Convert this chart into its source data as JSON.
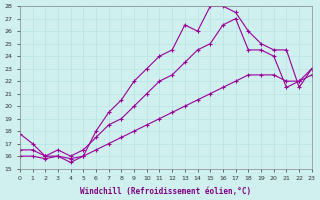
{
  "xlabel": "Windchill (Refroidissement éolien,°C)",
  "bg_color": "#cff0ef",
  "line_color": "#990099",
  "grid_color": "#b8e4e3",
  "xmin": 0,
  "xmax": 23,
  "ymin": 15,
  "ymax": 28,
  "line1_x": [
    0,
    1,
    2,
    3,
    4,
    5,
    6,
    7,
    8,
    9,
    10,
    11,
    12,
    13,
    14,
    15,
    16,
    17,
    18,
    19,
    20,
    21,
    22,
    23
  ],
  "line1_y": [
    17.8,
    17.0,
    16.0,
    16.0,
    15.5,
    16.0,
    18.0,
    19.5,
    20.5,
    22.0,
    23.0,
    24.0,
    24.5,
    26.5,
    26.0,
    28.0,
    28.0,
    27.5,
    26.0,
    25.0,
    24.5,
    24.5,
    21.5,
    23.0
  ],
  "line2_x": [
    0,
    1,
    2,
    3,
    4,
    5,
    6,
    7,
    8,
    9,
    10,
    11,
    12,
    13,
    14,
    15,
    16,
    17,
    18,
    19,
    20,
    21,
    22,
    23
  ],
  "line2_y": [
    16.5,
    16.5,
    16.0,
    16.5,
    16.0,
    16.5,
    17.5,
    18.5,
    19.0,
    20.0,
    21.0,
    22.0,
    22.5,
    23.5,
    24.5,
    25.0,
    26.5,
    27.0,
    24.5,
    24.5,
    24.0,
    21.5,
    22.0,
    23.0
  ],
  "line3_x": [
    0,
    1,
    2,
    3,
    4,
    5,
    6,
    7,
    8,
    9,
    10,
    11,
    12,
    13,
    14,
    15,
    16,
    17,
    18,
    19,
    20,
    21,
    22,
    23
  ],
  "line3_y": [
    16.0,
    16.0,
    15.8,
    16.0,
    15.8,
    16.0,
    16.5,
    17.0,
    17.5,
    18.0,
    18.5,
    19.0,
    19.5,
    20.0,
    20.5,
    21.0,
    21.5,
    22.0,
    22.5,
    22.5,
    22.5,
    22.0,
    22.0,
    22.5
  ]
}
